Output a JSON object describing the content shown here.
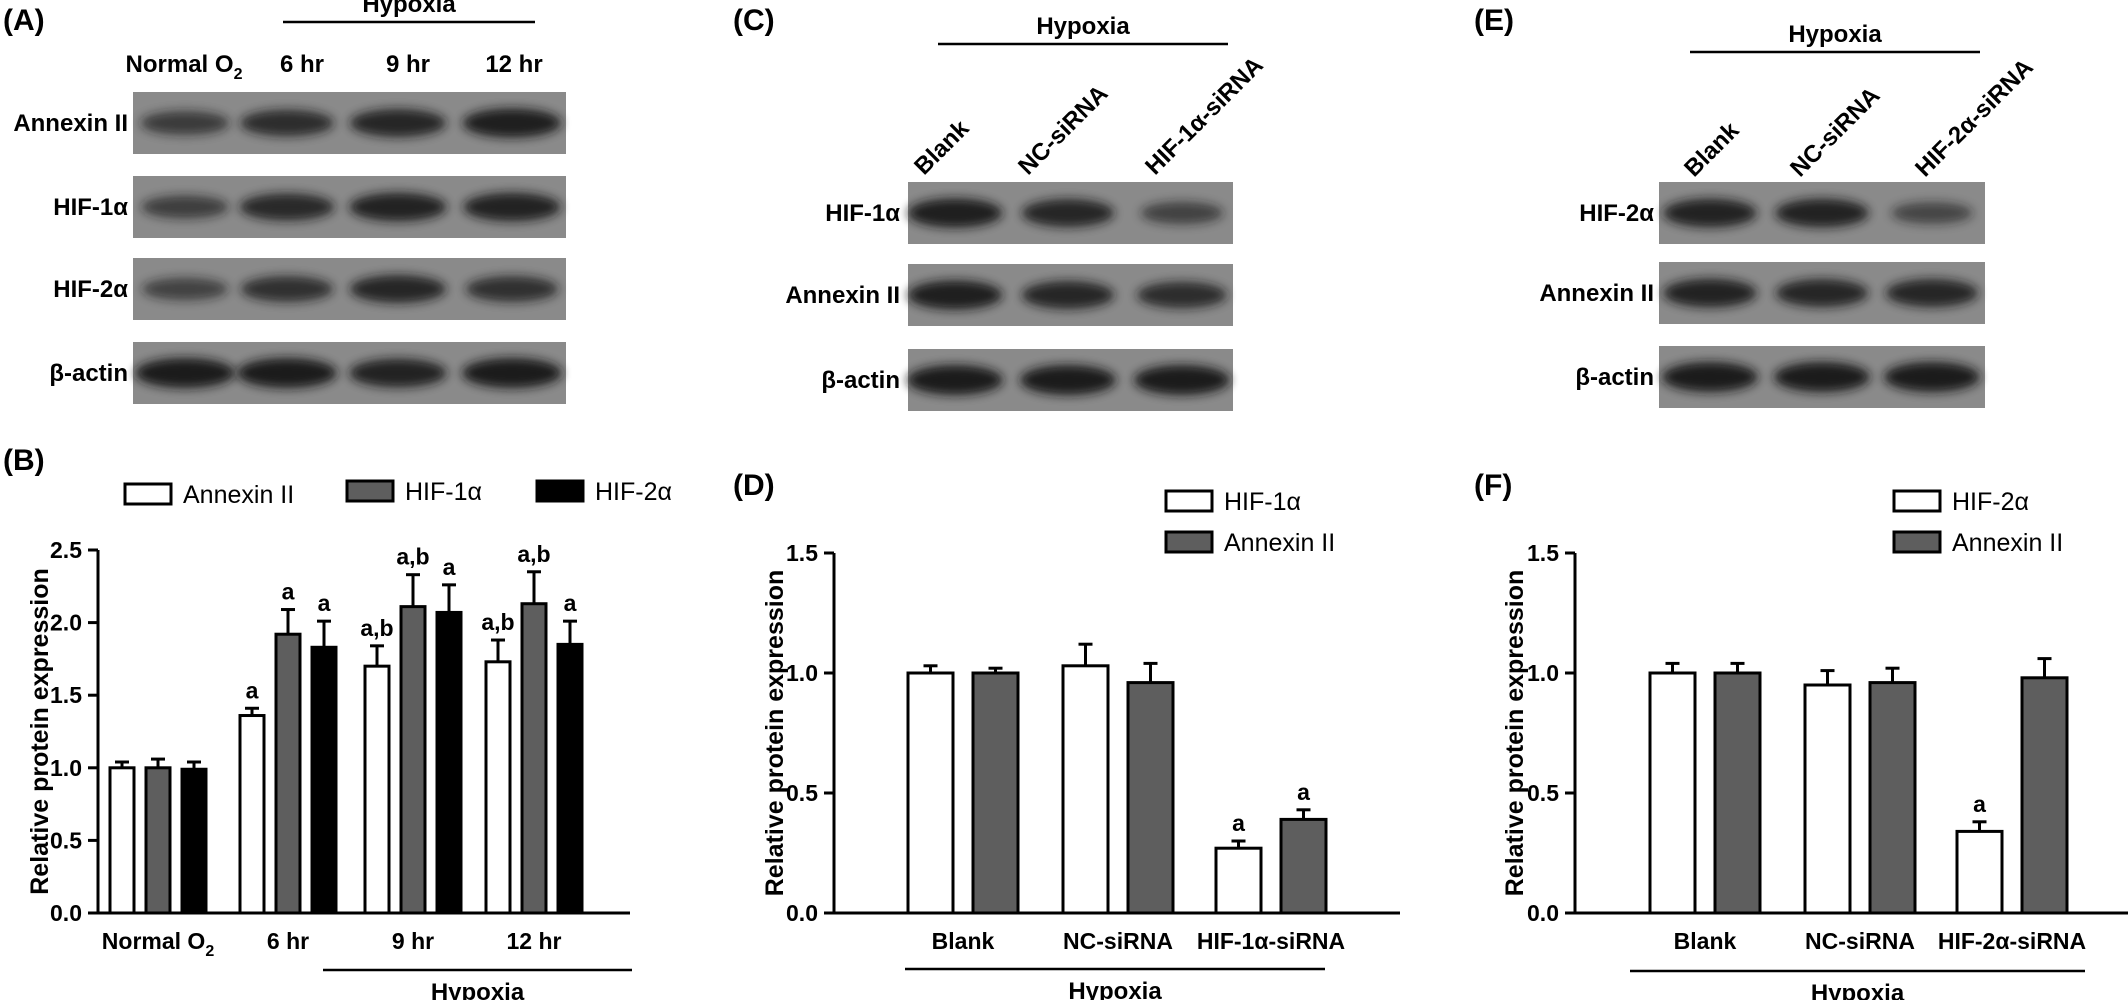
{
  "colors": {
    "white_bar": "#ffffff",
    "grey_bar": "#5e5e5e",
    "black_bar": "#000000",
    "blot_bg": "#8a8a8a",
    "band": "#141414"
  },
  "figure": {
    "A": {
      "panel_label": "(A)",
      "bracket_label": "Hypoxia",
      "lane_labels": [
        {
          "main": "Normal O",
          "sub": "2"
        },
        {
          "main": "6 hr",
          "sub": ""
        },
        {
          "main": "9 hr",
          "sub": ""
        },
        {
          "main": "12 hr",
          "sub": ""
        }
      ],
      "rows": [
        {
          "label": "Annexin II",
          "intensity": [
            0.55,
            0.75,
            0.85,
            0.95
          ]
        },
        {
          "label": "HIF-1α",
          "intensity": [
            0.5,
            0.8,
            0.9,
            0.9
          ]
        },
        {
          "label": "HIF-2α",
          "intensity": [
            0.45,
            0.7,
            0.85,
            0.7
          ]
        },
        {
          "label": "β-actin",
          "intensity": [
            1.0,
            1.0,
            0.9,
            1.0
          ]
        }
      ]
    },
    "C": {
      "panel_label": "(C)",
      "bracket_label": "Hypoxia",
      "lane_labels": [
        "Blank",
        "NC-siRNA",
        "HIF-1α-siRNA"
      ],
      "rows": [
        {
          "label": "HIF-1α",
          "intensity": [
            0.95,
            0.85,
            0.45
          ]
        },
        {
          "label": "Annexin II",
          "intensity": [
            0.95,
            0.85,
            0.75
          ]
        },
        {
          "label": "β-actin",
          "intensity": [
            1.0,
            1.0,
            1.0
          ]
        }
      ]
    },
    "E": {
      "panel_label": "(E)",
      "bracket_label": "Hypoxia",
      "lane_labels": [
        "Blank",
        "NC-siRNA",
        "HIF-2α-siRNA"
      ],
      "rows": [
        {
          "label": "HIF-2α",
          "intensity": [
            0.9,
            0.9,
            0.4
          ]
        },
        {
          "label": "Annexin II",
          "intensity": [
            0.9,
            0.85,
            0.85
          ]
        },
        {
          "label": "β-actin",
          "intensity": [
            1.0,
            1.0,
            1.0
          ]
        }
      ]
    },
    "B": {
      "panel_label": "(B)",
      "bracket_label": "Hypoxia"
    },
    "D": {
      "panel_label": "(D)",
      "bracket_label": "Hypoxia"
    },
    "F": {
      "panel_label": "(F)",
      "bracket_label": "Hypoxia"
    }
  },
  "chart_data": [
    {
      "panel": "B",
      "type": "bar",
      "categories": [
        "Normal O2",
        "6 hr",
        "9 hr",
        "12 hr"
      ],
      "category_subscripts": {
        "Normal O2": "2"
      },
      "ylabel": "Relative protein expression",
      "xlabel": "",
      "ylim": [
        0,
        2.5
      ],
      "yticks": [
        "0.0",
        "0.5",
        "1.0",
        "1.5",
        "2.0",
        "2.5"
      ],
      "legend_position": "top",
      "series": [
        {
          "name": "Annexin II",
          "color": "#ffffff",
          "values": [
            1.0,
            1.36,
            1.7,
            1.73
          ],
          "errors": [
            0.04,
            0.05,
            0.14,
            0.15
          ],
          "annotations": [
            "",
            "a",
            "a,b",
            "a,b"
          ]
        },
        {
          "name": "HIF-1α",
          "color": "#5e5e5e",
          "values": [
            1.0,
            1.92,
            2.11,
            2.13
          ],
          "errors": [
            0.06,
            0.17,
            0.22,
            0.22
          ],
          "annotations": [
            "",
            "a",
            "a,b",
            "a,b"
          ]
        },
        {
          "name": "HIF-2α",
          "color": "#000000",
          "values": [
            0.99,
            1.83,
            2.07,
            1.85
          ],
          "errors": [
            0.05,
            0.18,
            0.19,
            0.16
          ],
          "annotations": [
            "",
            "a",
            "a",
            "a"
          ]
        }
      ]
    },
    {
      "panel": "D",
      "type": "bar",
      "categories": [
        "Blank",
        "NC-siRNA",
        "HIF-1α-siRNA"
      ],
      "ylabel": "Relative protein expression",
      "xlabel": "",
      "ylim": [
        0,
        1.5
      ],
      "yticks": [
        "0.0",
        "0.5",
        "1.0",
        "1.5"
      ],
      "legend_position": "top-right",
      "series": [
        {
          "name": "HIF-1α",
          "color": "#ffffff",
          "values": [
            1.0,
            1.03,
            0.27
          ],
          "errors": [
            0.03,
            0.09,
            0.03
          ],
          "annotations": [
            "",
            "",
            "a"
          ]
        },
        {
          "name": "Annexin II",
          "color": "#5e5e5e",
          "values": [
            1.0,
            0.96,
            0.39
          ],
          "errors": [
            0.02,
            0.08,
            0.04
          ],
          "annotations": [
            "",
            "",
            "a"
          ]
        }
      ]
    },
    {
      "panel": "F",
      "type": "bar",
      "categories": [
        "Blank",
        "NC-siRNA",
        "HIF-2α-siRNA"
      ],
      "ylabel": "Relative protein expression",
      "xlabel": "",
      "ylim": [
        0,
        1.5
      ],
      "yticks": [
        "0.0",
        "0.5",
        "1.0",
        "1.5"
      ],
      "legend_position": "top-right",
      "series": [
        {
          "name": "HIF-2α",
          "color": "#ffffff",
          "values": [
            1.0,
            0.95,
            0.34
          ],
          "errors": [
            0.04,
            0.06,
            0.04
          ],
          "annotations": [
            "",
            "",
            "a"
          ]
        },
        {
          "name": "Annexin II",
          "color": "#5e5e5e",
          "values": [
            1.0,
            0.96,
            0.98
          ],
          "errors": [
            0.04,
            0.06,
            0.08
          ],
          "annotations": [
            "",
            "",
            ""
          ]
        }
      ]
    }
  ]
}
